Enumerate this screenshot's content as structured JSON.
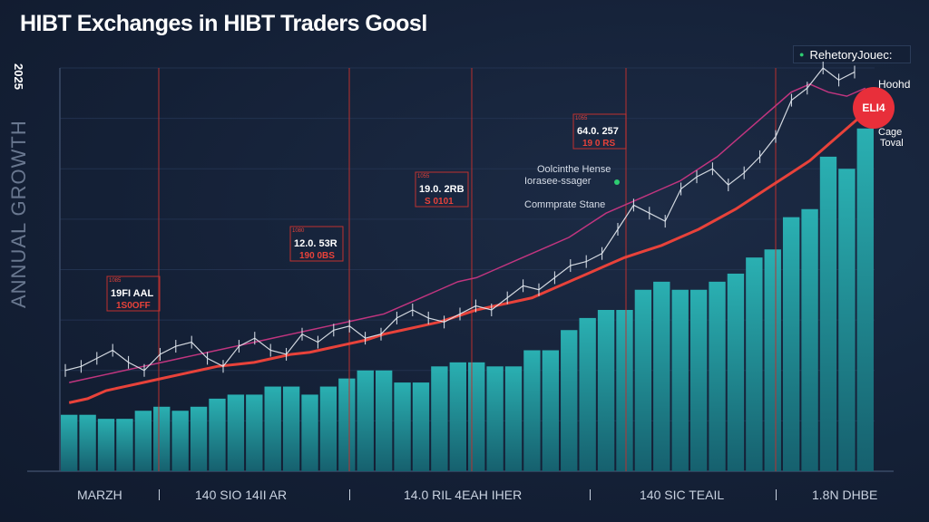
{
  "title": "HIBT Exchanges in HIBT Traders Goosl",
  "y_axis": {
    "tick_label": "2025",
    "label": "ANNUAL GROWTH"
  },
  "legend": {
    "label": "RehetoryJouec:"
  },
  "side_labels": {
    "hoohd": "Hoohd",
    "badge": "ELI4",
    "cage": "Cage",
    "toval": "Toval"
  },
  "colors": {
    "bars_top": "#2ab0b2",
    "bars_bottom": "#16606e",
    "trend": "#e8423a",
    "ma": "#c0357f",
    "price": "#e8ecf2",
    "badge": "#e82f3a"
  },
  "chart_data": {
    "type": "bar",
    "title": "HIBT Exchanges in HIBT Traders Goosl",
    "xlabel": "",
    "ylabel": "",
    "ylim": [
      0,
      100
    ],
    "x_labels": [
      "MARZH",
      "140 SIO  14II AR",
      "14.0 RIL  4EAH  IHER",
      "140 SIC  TEAIL",
      "1.8N DHBE"
    ],
    "bars": [
      14,
      14,
      13,
      13,
      15,
      16,
      15,
      16,
      18,
      19,
      19,
      21,
      21,
      19,
      21,
      23,
      25,
      25,
      22,
      22,
      26,
      27,
      27,
      26,
      26,
      30,
      30,
      35,
      38,
      40,
      40,
      45,
      47,
      45,
      45,
      47,
      49,
      53,
      55,
      63,
      65,
      78,
      75,
      85
    ],
    "trend_line": [
      17,
      18,
      20,
      21,
      22,
      23,
      24,
      25,
      26,
      26.5,
      27,
      28,
      29,
      29.5,
      30.5,
      31.5,
      32.5,
      34,
      35,
      36,
      37,
      38.5,
      40,
      41,
      42,
      43,
      45,
      47,
      49,
      51,
      53,
      54.5,
      56,
      58,
      60,
      62.5,
      65,
      68,
      71,
      74,
      77,
      81,
      85,
      89
    ],
    "moving_average": [
      22,
      23,
      24,
      25,
      26,
      27,
      28,
      29,
      30,
      31,
      32,
      33,
      34,
      35,
      36,
      37,
      38,
      39,
      41,
      43,
      45,
      47,
      48,
      50,
      52,
      54,
      56,
      58,
      61,
      64,
      66,
      68,
      70,
      72,
      75,
      78,
      82,
      86,
      90,
      94,
      96,
      94,
      93,
      95
    ],
    "price_points": [
      25,
      26,
      28,
      30,
      27,
      25,
      29,
      31,
      32,
      28,
      26,
      31,
      33,
      30,
      29,
      34,
      32,
      35,
      36,
      33,
      34,
      38,
      40,
      38,
      37,
      39,
      41,
      40,
      43,
      46,
      45,
      48,
      51,
      52,
      54,
      60,
      66,
      64,
      62,
      70,
      73,
      75,
      71,
      74,
      78,
      83,
      92,
      95,
      100,
      97,
      99
    ],
    "annotations": [
      {
        "line1": "1085",
        "line2": "19FI AAL",
        "line3": "1S0OFF",
        "x_index": 6
      },
      {
        "line1": "1080",
        "line2": "12.0. 53R",
        "line3": "190 0BS",
        "x_index": 14
      },
      {
        "line1": "1055",
        "line2": "19.0. 2RB",
        "line3": "S 0101",
        "x_index": 20
      },
      {
        "line1": "1055",
        "line2": "64.0. 257",
        "line3": "19 0 RS",
        "x_index": 29
      }
    ],
    "callout": {
      "line1": "Oolcinthe Hense",
      "line2": "Iorasee-ssager",
      "line3": "Commprate Stane"
    }
  }
}
